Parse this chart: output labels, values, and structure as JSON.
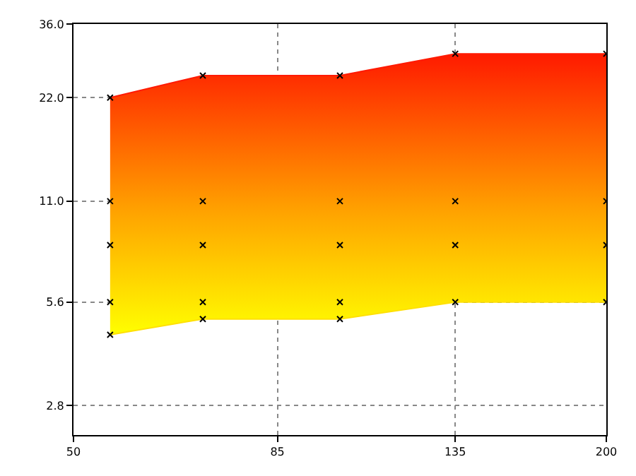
{
  "chart_data": {
    "type": "area",
    "x": [
      55,
      70,
      100,
      135,
      200
    ],
    "log": "xy",
    "xlim": [
      50,
      200
    ],
    "xticks": [
      50,
      85,
      135,
      200
    ],
    "ylim": [
      2.3,
      36
    ],
    "yticks": [
      {
        "value": 2.8,
        "label": "2.8"
      },
      {
        "value": 5.6,
        "label": "5.6"
      },
      {
        "value": 11,
        "label": "11.0"
      },
      {
        "value": 22,
        "label": "22.0"
      },
      {
        "value": 36,
        "label": "36.0"
      }
    ],
    "grid": true,
    "series": [
      {
        "type": "line",
        "marker": "none",
        "color": "#ffe000",
        "values": [
          4.5,
          5.0,
          5.0,
          5.6,
          5.6
        ]
      },
      {
        "marker": "none",
        "color": "#ff1a00",
        "values": [
          22,
          25.5,
          25.5,
          29.5,
          29.5
        ]
      },
      {
        "type": "scatter",
        "marker": "cross",
        "color": "#000000",
        "values": [
          22,
          25.5,
          25.5,
          29.5,
          29.5
        ]
      },
      {
        "type": "scatter",
        "marker": "cross",
        "color": "#000000",
        "values": [
          11,
          11,
          11,
          11,
          11
        ]
      },
      {
        "type": "scatter",
        "marker": "cross",
        "color": "#000000",
        "values": [
          8.2,
          8.2,
          8.2,
          8.2,
          8.2
        ]
      },
      {
        "type": "scatter",
        "marker": "cross",
        "color": "#000000",
        "values": [
          5.6,
          5.6,
          5.6,
          5.6,
          5.6
        ]
      },
      {
        "type": "scatter",
        "marker": "cross",
        "color": "#000000",
        "values": [
          4.5,
          5.0,
          5.0,
          null,
          null
        ]
      }
    ]
  }
}
